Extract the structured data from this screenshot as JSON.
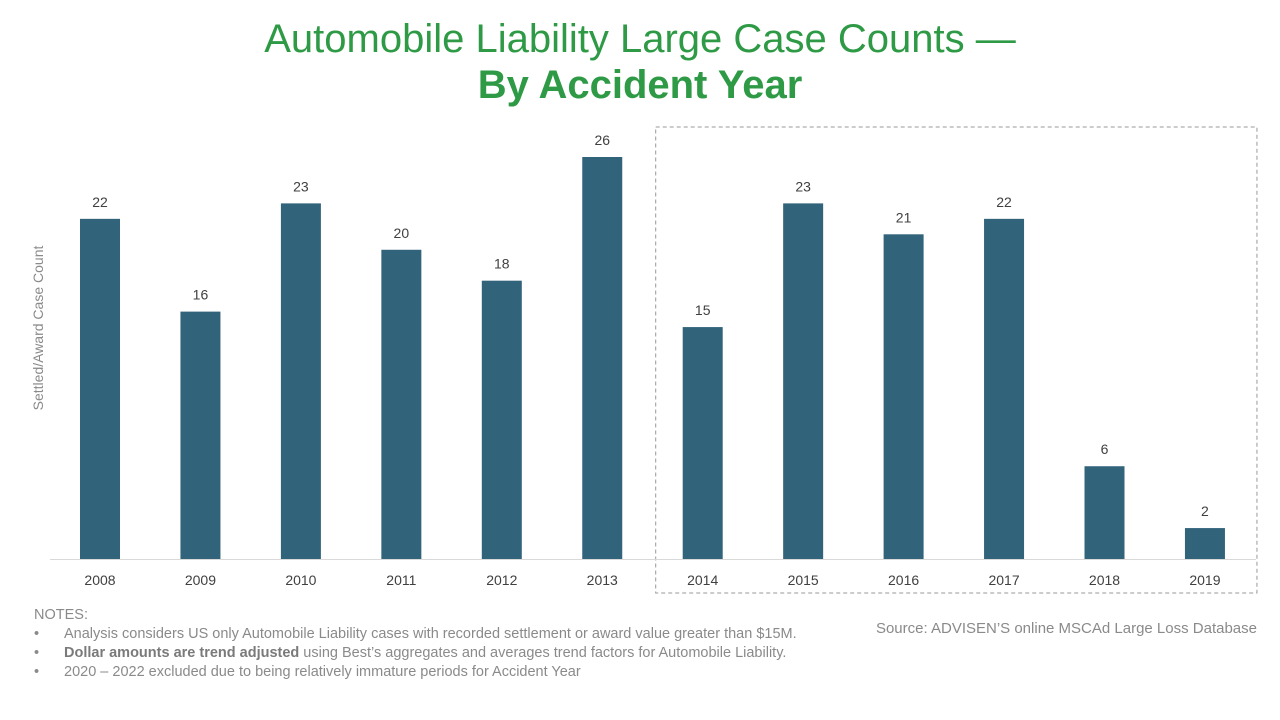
{
  "chart_data": {
    "type": "bar",
    "title": "Automobile Liability Large Case Counts —",
    "subtitle": "By Accident Year",
    "ylabel": "Settled/Award Case Count",
    "xlabel": "",
    "categories": [
      "2008",
      "2009",
      "2010",
      "2011",
      "2012",
      "2013",
      "2014",
      "2015",
      "2016",
      "2017",
      "2018",
      "2019"
    ],
    "values": [
      22,
      16,
      23,
      20,
      18,
      26,
      15,
      23,
      21,
      22,
      6,
      2
    ],
    "ylim": [
      0,
      26
    ],
    "grid": false,
    "legend": "none",
    "bar_color": "#31637b",
    "title_color": "#2e9a45",
    "highlighted_range": [
      "2014",
      "2019"
    ]
  },
  "notes": {
    "heading": "NOTES:",
    "items": [
      {
        "bold": "",
        "text": "Analysis considers US only Automobile Liability cases with recorded settlement or award value greater than $15M."
      },
      {
        "bold": "Dollar amounts are trend adjusted",
        "text": " using Best’s aggregates and averages trend factors for Automobile Liability."
      },
      {
        "bold": "",
        "text": "2020 – 2022 excluded due to being relatively immature periods for Accident Year"
      }
    ]
  },
  "source": "Source: ADVISEN’S online MSCAd Large Loss Database"
}
